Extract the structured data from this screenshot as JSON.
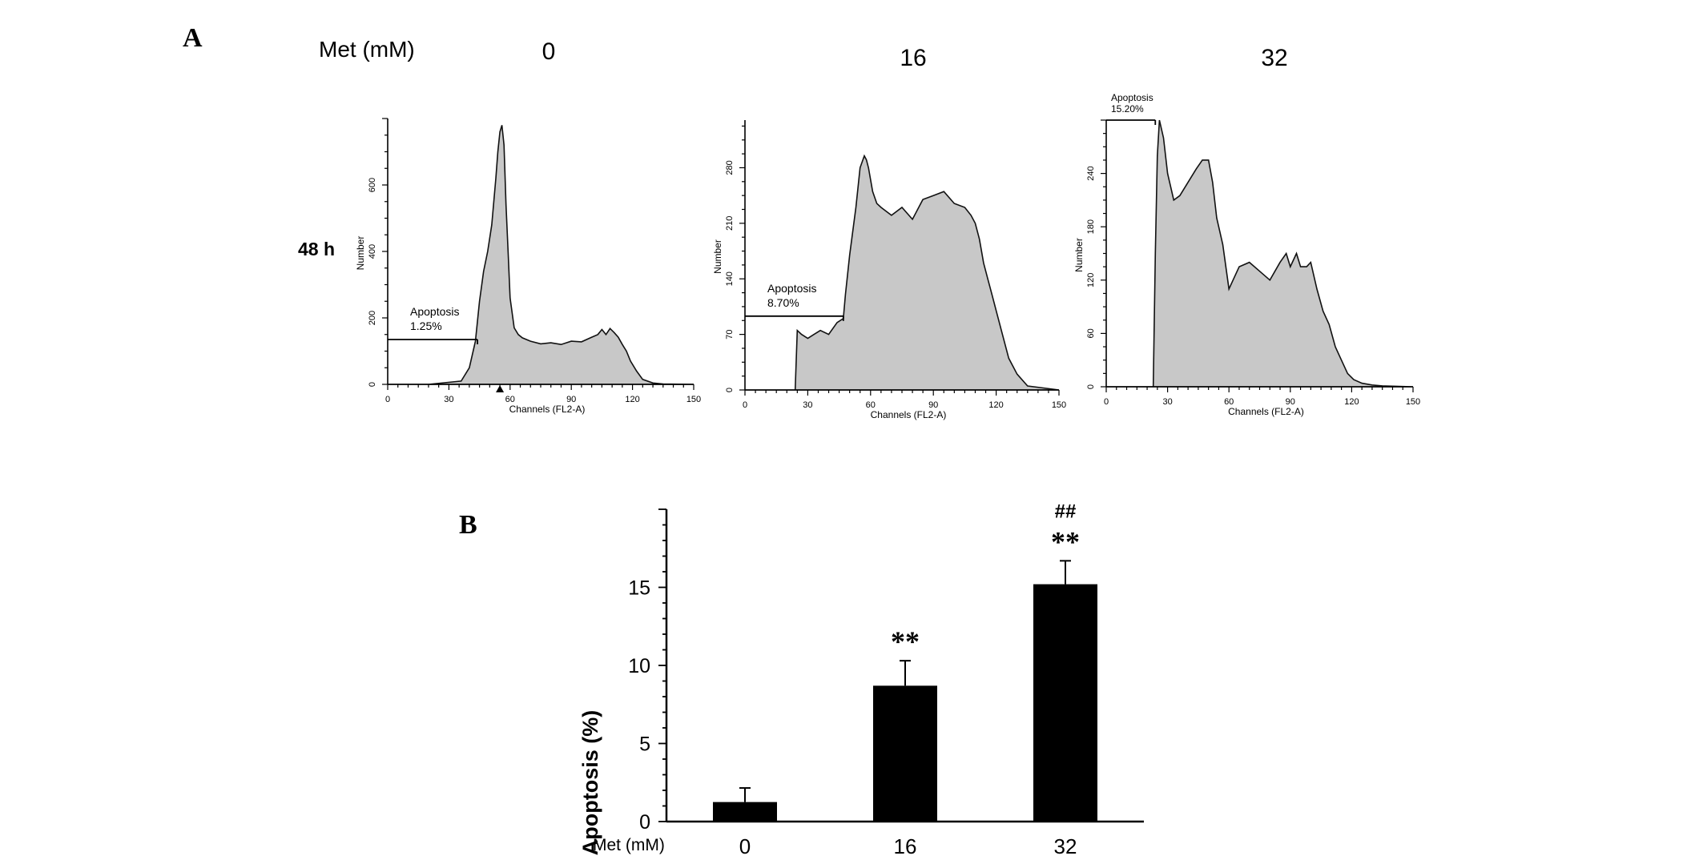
{
  "figure": {
    "panel_a_label": "A",
    "panel_b_label": "B",
    "panel_a_header": "Met (mM)",
    "time_label": "48 h"
  },
  "histograms": [
    {
      "column_label": "0",
      "ylabel": "Number",
      "xlabel": "Channels (FL2-A)",
      "gate_label": "Apoptosis",
      "gate_value": "1.25%",
      "gate_range": [
        0,
        44
      ],
      "gate_level": 135,
      "x_ticks": [
        "0",
        "30",
        "60",
        "90",
        "120",
        "150"
      ],
      "y_ticks": [
        "0",
        "200",
        "400",
        "600"
      ]
    },
    {
      "column_label": "16",
      "ylabel": "Number",
      "xlabel": "Channels (FL2-A)",
      "gate_label": "Apoptosis",
      "gate_value": "8.70%",
      "gate_range": [
        0,
        47
      ],
      "gate_level": 93,
      "x_ticks": [
        "0",
        "30",
        "60",
        "90",
        "120",
        "150"
      ],
      "y_ticks": [
        "0",
        "70",
        "140",
        "210",
        "280"
      ]
    },
    {
      "column_label": "32",
      "ylabel": "Number",
      "xlabel": "Channels (FL2-A)",
      "gate_label": "Apoptosis",
      "gate_value": "15.20%",
      "gate_range": [
        0,
        24
      ],
      "gate_level": 300,
      "x_ticks": [
        "0",
        "30",
        "60",
        "90",
        "120",
        "150"
      ],
      "y_ticks": [
        "0",
        "60",
        "120",
        "180",
        "240"
      ]
    }
  ],
  "chart_data": [
    {
      "type": "area",
      "x": [
        0,
        20,
        36,
        40,
        43,
        45,
        47,
        49,
        51,
        53,
        54,
        55,
        56,
        57,
        58,
        59,
        60,
        62,
        64,
        66,
        70,
        75,
        80,
        85,
        90,
        95,
        100,
        103,
        105,
        107,
        109,
        111,
        113,
        115,
        117,
        119,
        122,
        125,
        130,
        135,
        150
      ],
      "y": [
        0,
        0,
        10,
        50,
        130,
        250,
        340,
        400,
        480,
        620,
        700,
        760,
        780,
        720,
        540,
        400,
        260,
        170,
        150,
        140,
        130,
        122,
        125,
        120,
        130,
        128,
        142,
        150,
        165,
        150,
        168,
        156,
        142,
        120,
        100,
        70,
        40,
        15,
        4,
        1,
        0
      ],
      "xlim": [
        0,
        150
      ],
      "ylim": [
        0,
        800
      ]
    },
    {
      "type": "area",
      "x": [
        0,
        24,
        25,
        27,
        30,
        33,
        36,
        40,
        44,
        47,
        48,
        50,
        53,
        55,
        57,
        58,
        59,
        61,
        63,
        65,
        70,
        75,
        80,
        85,
        90,
        95,
        100,
        105,
        108,
        110,
        112,
        114,
        116,
        118,
        120,
        123,
        126,
        130,
        135,
        150
      ],
      "y": [
        0,
        0,
        75,
        70,
        65,
        70,
        75,
        70,
        85,
        90,
        120,
        170,
        230,
        280,
        295,
        290,
        280,
        250,
        235,
        230,
        220,
        230,
        215,
        240,
        245,
        250,
        235,
        230,
        220,
        210,
        190,
        160,
        140,
        120,
        100,
        70,
        40,
        20,
        5,
        0
      ],
      "xlim": [
        0,
        150
      ],
      "ylim": [
        0,
        340
      ]
    },
    {
      "type": "area",
      "x": [
        0,
        23,
        24,
        25,
        26,
        28,
        30,
        33,
        36,
        40,
        44,
        47,
        50,
        52,
        54,
        57,
        60,
        62,
        65,
        70,
        75,
        80,
        85,
        88,
        90,
        93,
        95,
        98,
        100,
        103,
        106,
        109,
        112,
        115,
        118,
        121,
        125,
        130,
        135,
        150
      ],
      "y": [
        0,
        0,
        150,
        260,
        300,
        280,
        240,
        210,
        215,
        230,
        245,
        255,
        255,
        230,
        190,
        160,
        110,
        120,
        135,
        140,
        130,
        120,
        140,
        150,
        135,
        150,
        135,
        135,
        140,
        110,
        85,
        70,
        45,
        30,
        15,
        8,
        4,
        2,
        1,
        0
      ],
      "xlim": [
        0,
        150
      ],
      "ylim": [
        0,
        300
      ]
    },
    {
      "type": "bar",
      "categories": [
        "0",
        "16",
        "32"
      ],
      "values": [
        1.25,
        8.7,
        15.2
      ],
      "errors": [
        0.9,
        1.6,
        1.5
      ],
      "annotations": [
        [],
        [
          "**"
        ],
        [
          "##",
          "**"
        ]
      ],
      "ylabel": "Apoptosis (%)",
      "xlabel": "Met (mM)",
      "ylim": [
        0,
        20
      ],
      "y_ticks": [
        "0",
        "5",
        "10",
        "15"
      ]
    }
  ]
}
